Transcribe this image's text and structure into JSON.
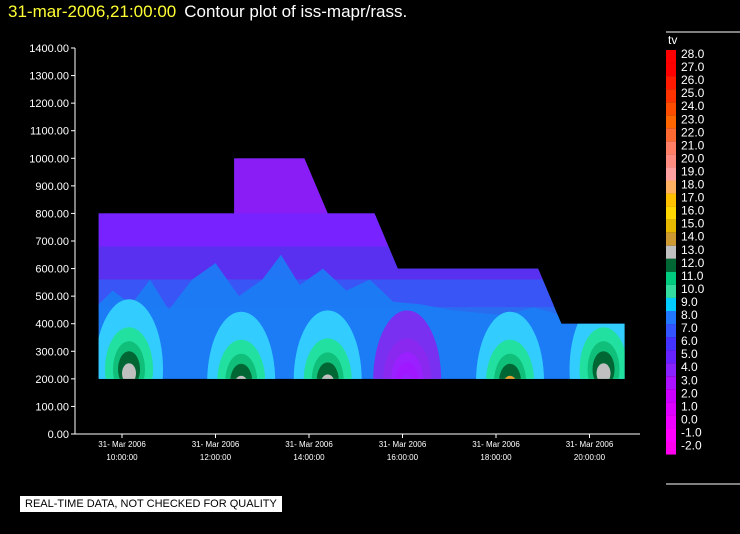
{
  "header": {
    "timestamp": "31-mar-2006,21:00:00",
    "title": "Contour plot of iss-mapr/rass."
  },
  "footer": {
    "qc_note": "REAL-TIME DATA, NOT CHECKED FOR QUALITY"
  },
  "chart_data": {
    "type": "heatmap",
    "subtype": "filled-contour",
    "title": "Contour plot of iss-mapr/rass.",
    "xlabel": "",
    "ylabel": "",
    "ylim": [
      0,
      1400
    ],
    "y_ticks": [
      "0.00",
      "100.00",
      "200.00",
      "300.00",
      "400.00",
      "500.00",
      "600.00",
      "700.00",
      "800.00",
      "900.00",
      "1000.00",
      "1100.00",
      "1200.00",
      "1300.00",
      "1400.00"
    ],
    "x_ticks": [
      {
        "hour": 10,
        "date": "31- Mar 2006",
        "time": "10:00:00"
      },
      {
        "hour": 12,
        "date": "31- Mar 2006",
        "time": "12:00:00"
      },
      {
        "hour": 14,
        "date": "31- Mar 2006",
        "time": "14:00:00"
      },
      {
        "hour": 16,
        "date": "31- Mar 2006",
        "time": "16:00:00"
      },
      {
        "hour": 18,
        "date": "31- Mar 2006",
        "time": "18:00:00"
      },
      {
        "hour": 20,
        "date": "31- Mar 2006",
        "time": "20:00:00"
      }
    ],
    "xlim_hours": [
      9.5,
      20.75
    ],
    "data_boundary": [
      [
        9.5,
        200
      ],
      [
        9.5,
        800
      ],
      [
        12.4,
        800
      ],
      [
        12.4,
        1000
      ],
      [
        13.9,
        1000
      ],
      [
        14.4,
        800
      ],
      [
        15.4,
        800
      ],
      [
        15.9,
        600
      ],
      [
        18.9,
        600
      ],
      [
        19.4,
        400
      ],
      [
        20.75,
        400
      ],
      [
        20.75,
        200
      ]
    ],
    "features": [
      {
        "hour": 10.15,
        "height": 300,
        "value": 10.0
      },
      {
        "hour": 12.55,
        "height": 255,
        "value": 13.0
      },
      {
        "hour": 14.4,
        "height": 260,
        "value": 11.0
      },
      {
        "hour": 16.1,
        "height": 260,
        "value": 3.0
      },
      {
        "hour": 18.3,
        "height": 255,
        "value": 15.0
      },
      {
        "hour": 20.3,
        "height": 300,
        "value": 11.0
      }
    ],
    "legend": {
      "variable": "tv",
      "levels": [
        "28.0",
        "27.0",
        "26.0",
        "25.0",
        "24.0",
        "23.0",
        "22.0",
        "21.0",
        "20.0",
        "19.0",
        "18.0",
        "17.0",
        "16.0",
        "15.0",
        "14.0",
        "13.0",
        "12.0",
        "11.0",
        "10.0",
        "9.0",
        "8.0",
        "7.0",
        "6.0",
        "5.0",
        "4.0",
        "3.0",
        "2.0",
        "1.0",
        "0.0",
        "-1.0",
        "-2.0"
      ],
      "colors": [
        "#ff0000",
        "#ff0000",
        "#ff1a00",
        "#ff3300",
        "#ff4d00",
        "#ff6600",
        "#ff6a33",
        "#ff7f66",
        "#ff8c80",
        "#ffa0a0",
        "#ffb060",
        "#ffc000",
        "#ffd700",
        "#e6b800",
        "#cc9933",
        "#c0c0c0",
        "#006633",
        "#00cc80",
        "#33dda0",
        "#00ccff",
        "#2277ff",
        "#3355ff",
        "#4433ff",
        "#6622ff",
        "#8822ff",
        "#aa11ff",
        "#cc00ff",
        "#dd00ff",
        "#ee00ff",
        "#ff00ff",
        "#ff00ee"
      ]
    }
  }
}
